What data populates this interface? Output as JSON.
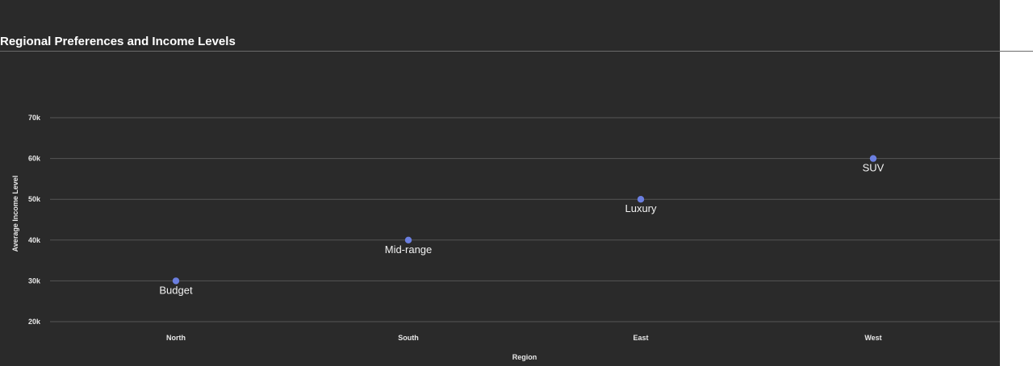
{
  "title": "Regional Preferences and Income Levels",
  "colors": {
    "background": "#2a2a2a",
    "grid": "#555555",
    "point": "#6b7fe0",
    "text": "#e8e8e8"
  },
  "chart_data": {
    "type": "scatter",
    "title": "Regional Preferences and Income Levels",
    "xlabel": "Region",
    "ylabel": "Average Income Level",
    "categories": [
      "North",
      "South",
      "East",
      "West"
    ],
    "ylim": [
      20000,
      70000
    ],
    "yticks": [
      20000,
      30000,
      40000,
      50000,
      60000,
      70000
    ],
    "ytick_labels": [
      "20k",
      "30k",
      "40k",
      "50k",
      "60k",
      "70k"
    ],
    "grid": true,
    "points": [
      {
        "x": "North",
        "y": 30000,
        "label": "Budget"
      },
      {
        "x": "South",
        "y": 40000,
        "label": "Mid-range"
      },
      {
        "x": "East",
        "y": 50000,
        "label": "Luxury"
      },
      {
        "x": "West",
        "y": 60000,
        "label": "SUV"
      }
    ]
  }
}
